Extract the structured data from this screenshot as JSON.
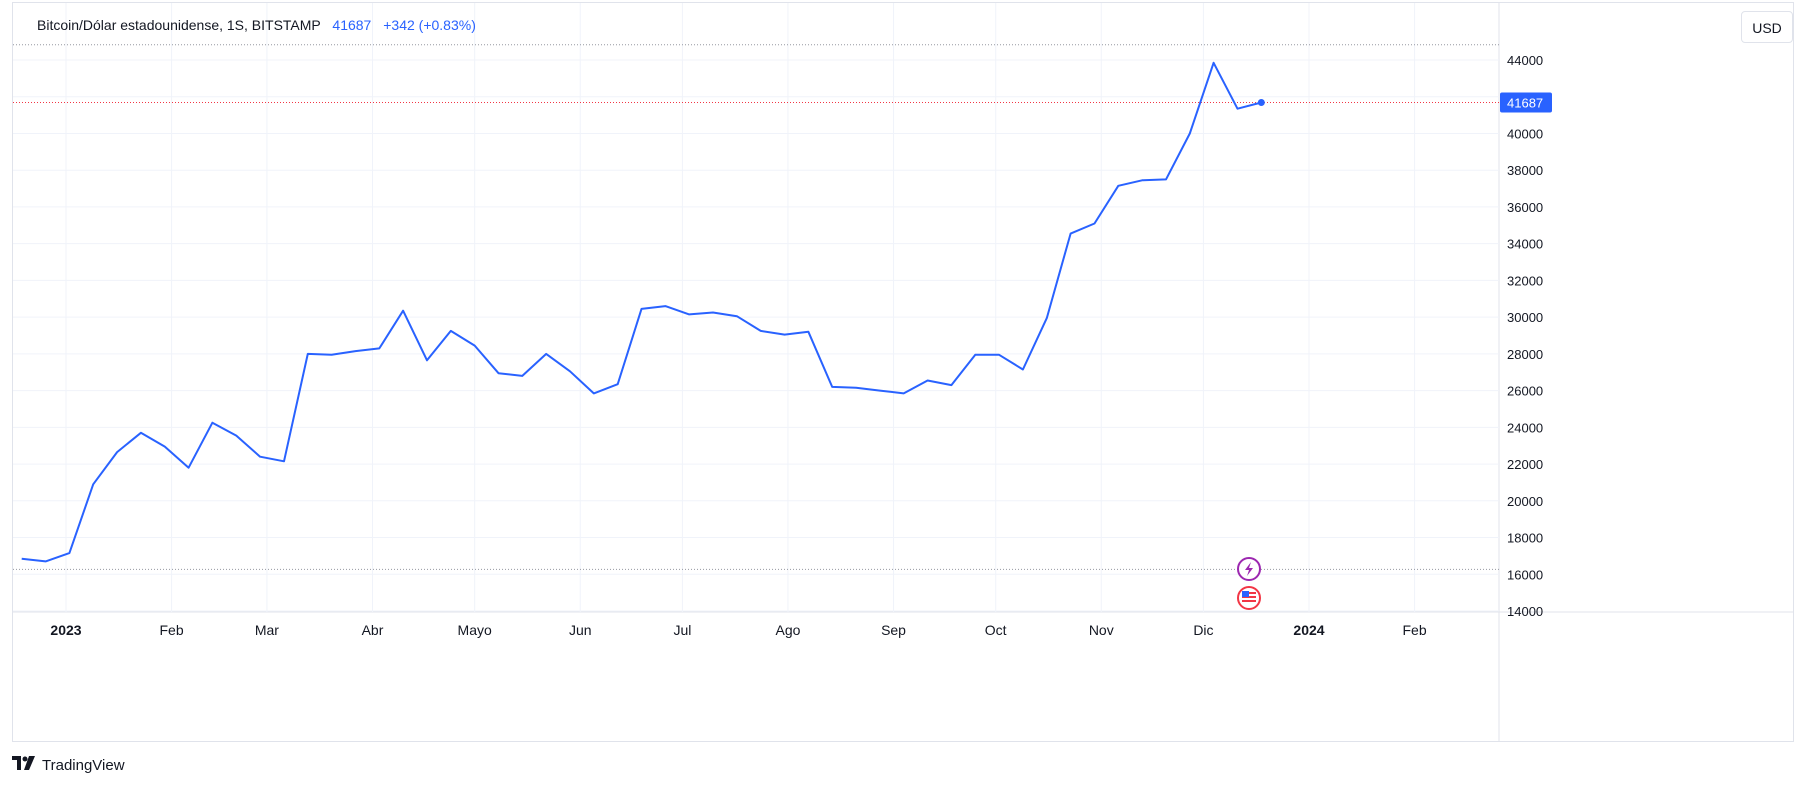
{
  "legend": {
    "symbol": "Bitcoin/Dólar estadounidense, 1S, BITSTAMP",
    "last": "41687",
    "change": "+342 (+0.83%)"
  },
  "currency_button": "USD",
  "last_price_label": "41687",
  "watermark": "TradingView",
  "colors": {
    "line": "#2962ff",
    "grid": "#f0f3fa",
    "last_price_line": "#f23645",
    "range_line": "#9598a1"
  },
  "event_icons": [
    "lightning-icon",
    "us-flag-icon"
  ],
  "chart_data": {
    "type": "line",
    "title": "",
    "xlabel": "",
    "ylabel": "",
    "ylim": [
      14000,
      44000
    ],
    "ytick_labels": [
      "14000",
      "16000",
      "18000",
      "20000",
      "22000",
      "24000",
      "26000",
      "28000",
      "30000",
      "32000",
      "34000",
      "36000",
      "38000",
      "40000",
      "42000",
      "44000"
    ],
    "x_tick_labels": [
      "2023",
      "Feb",
      "Mar",
      "Abr",
      "Mayo",
      "Jun",
      "Jul",
      "Ago",
      "Sep",
      "Oct",
      "Nov",
      "Dic",
      "2024",
      "Feb"
    ],
    "grid": true,
    "series": [
      {
        "x": [
          "2022-12-19",
          "2022-12-26",
          "2023-01-02",
          "2023-01-09",
          "2023-01-16",
          "2023-01-23",
          "2023-01-30",
          "2023-02-06",
          "2023-02-13",
          "2023-02-20",
          "2023-02-27",
          "2023-03-06",
          "2023-03-13",
          "2023-03-20",
          "2023-03-27",
          "2023-04-03",
          "2023-04-10",
          "2023-04-17",
          "2023-04-24",
          "2023-05-01",
          "2023-05-08",
          "2023-05-15",
          "2023-05-22",
          "2023-05-29",
          "2023-06-05",
          "2023-06-12",
          "2023-06-19",
          "2023-06-26",
          "2023-07-03",
          "2023-07-10",
          "2023-07-17",
          "2023-07-24",
          "2023-07-31",
          "2023-08-07",
          "2023-08-14",
          "2023-08-21",
          "2023-08-28",
          "2023-09-04",
          "2023-09-11",
          "2023-09-18",
          "2023-09-25",
          "2023-10-02",
          "2023-10-09",
          "2023-10-16",
          "2023-10-23",
          "2023-10-30",
          "2023-11-06",
          "2023-11-13",
          "2023-11-20",
          "2023-11-27",
          "2023-12-04",
          "2023-12-11",
          "2023-12-18"
        ],
        "values": [
          16850,
          16700,
          17150,
          20900,
          22650,
          23700,
          22950,
          21800,
          24250,
          23550,
          22400,
          22150,
          28000,
          27950,
          28150,
          28300,
          30350,
          27650,
          29250,
          28450,
          26950,
          26800,
          28000,
          27050,
          25850,
          26350,
          30450,
          30600,
          30150,
          30250,
          30050,
          29250,
          29050,
          29200,
          26200,
          26150,
          26000,
          25850,
          26550,
          26300,
          27950,
          27950,
          27150,
          29950,
          34550,
          35100,
          37150,
          37450,
          37500,
          40000,
          43850,
          41350,
          41687
        ]
      }
    ]
  }
}
